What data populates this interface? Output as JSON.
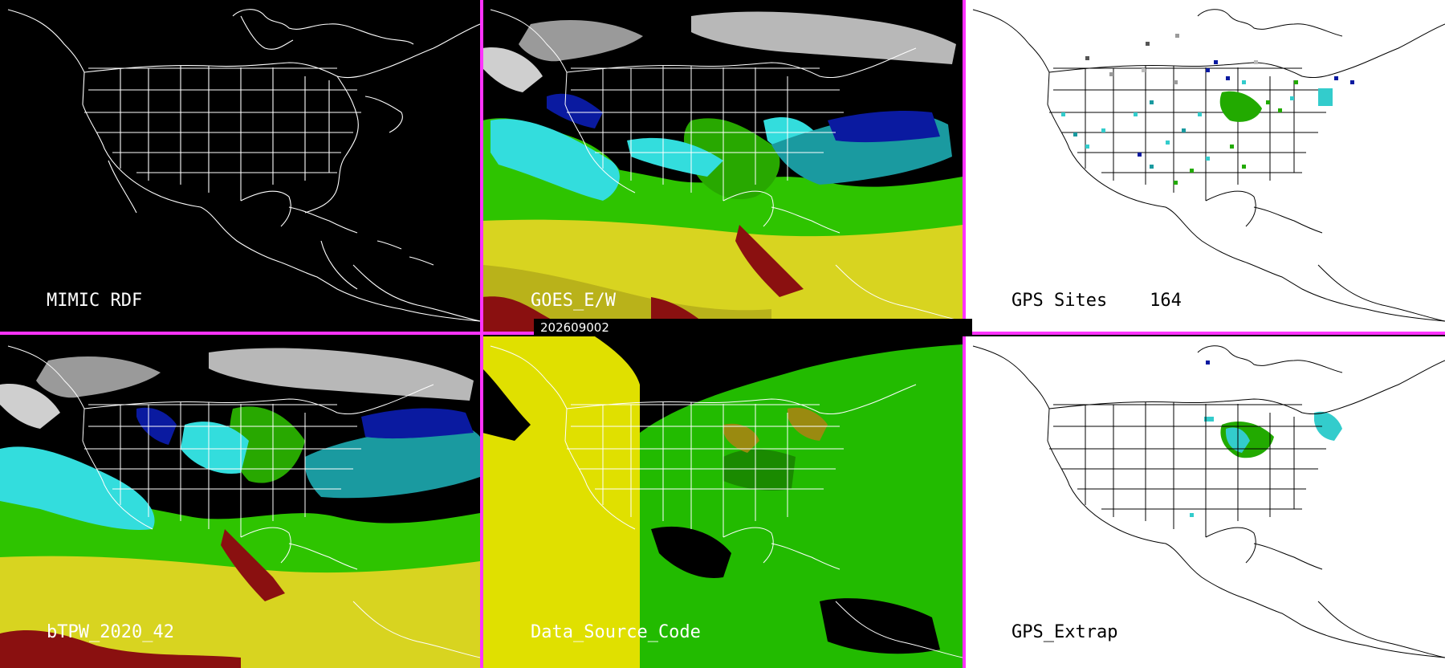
{
  "panels": [
    {
      "label": "MIMIC RDF",
      "theme": "dark",
      "kind": "blank"
    },
    {
      "label": "GOES_E/W",
      "theme": "dark",
      "kind": "tpw"
    },
    {
      "label": "GPS Sites    164",
      "theme": "light",
      "kind": "gps_sites"
    },
    {
      "label": "bTPW_2020_42",
      "theme": "dark",
      "kind": "tpw2"
    },
    {
      "label": "Data_Source_Code",
      "theme": "dark",
      "kind": "source"
    },
    {
      "label": "GPS_Extrap",
      "theme": "light",
      "kind": "gps_extrap"
    }
  ],
  "timestamp": "202609002",
  "colors": {
    "separator": "#ff33ff",
    "yellow": "#e0e000",
    "green": "#22bb00",
    "light_green": "#44dd22",
    "cyan": "#33dddd",
    "blue": "#0a1aa0",
    "dark_red": "#8a1010",
    "olive": "#9a8a10",
    "gray": "#9a9a9a"
  }
}
